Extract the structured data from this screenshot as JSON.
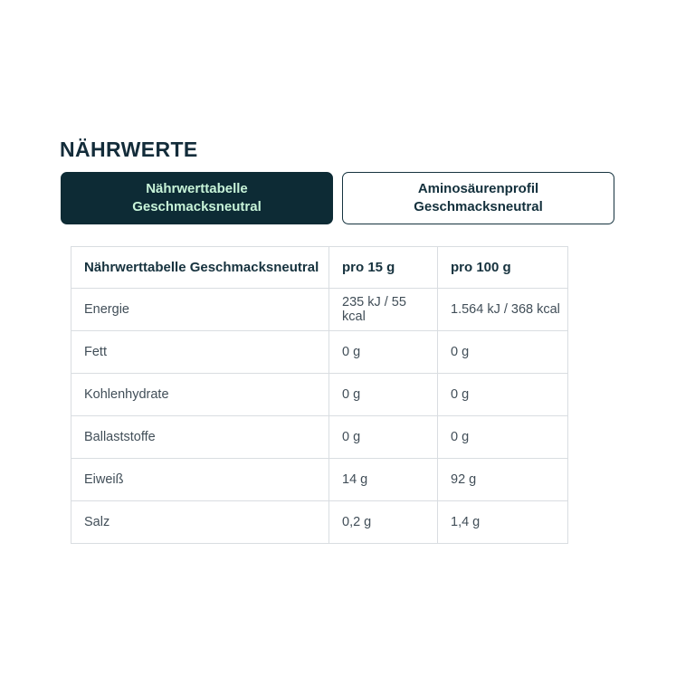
{
  "page": {
    "heading": "NÄHRWERTE"
  },
  "tabs": {
    "nutrition_table": {
      "label": "Nährwerttabelle\nGeschmacksneutral",
      "active": true
    },
    "amino_profile": {
      "label": "Aminosäurenprofil\nGeschmacksneutral",
      "active": false
    }
  },
  "table": {
    "headers": {
      "name": "Nährwerttabelle Geschmacksneutral",
      "per15": "pro 15 g",
      "per100": "pro 100 g"
    },
    "rows": [
      {
        "label": "Energie",
        "per15": "235 kJ / 55 kcal",
        "per100": "1.564 kJ / 368 kcal"
      },
      {
        "label": "Fett",
        "per15": "0 g",
        "per100": "0 g"
      },
      {
        "label": "Kohlenhydrate",
        "per15": "0 g",
        "per100": "0 g"
      },
      {
        "label": "Ballaststoffe",
        "per15": "0 g",
        "per100": "0 g"
      },
      {
        "label": "Eiweiß",
        "per15": "14 g",
        "per100": "92 g"
      },
      {
        "label": "Salz",
        "per15": "0,2 g",
        "per100": "1,4 g"
      }
    ]
  },
  "colors": {
    "heading_text": "#132c3a",
    "tab_active_bg": "#0d2b35",
    "tab_active_text": "#c7f3d8",
    "tab_inactive_border": "#16333f",
    "tab_inactive_text": "#13303c",
    "table_border": "#d9dde1",
    "table_header_text": "#16323e",
    "table_cell_text": "#414e58"
  }
}
